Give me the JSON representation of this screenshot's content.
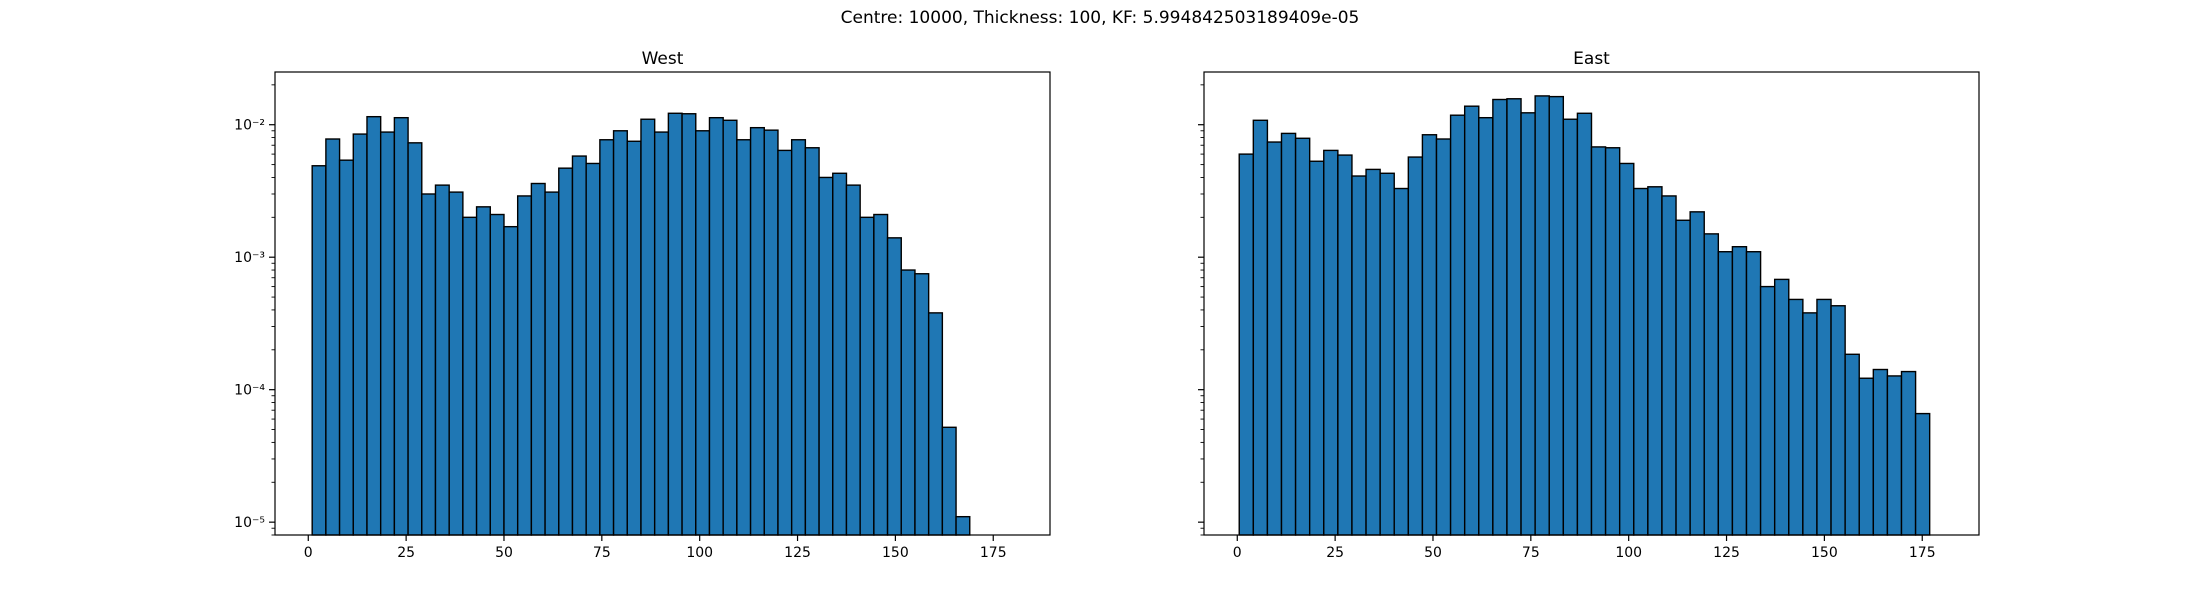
{
  "suptitle": "Centre: 10000, Thickness: 100, KF: 5.994842503189409e-05",
  "colors": {
    "bar_fill": "#1f77b4",
    "bar_edge": "#000000",
    "axes": "#000000"
  },
  "chart_data": [
    {
      "type": "bar",
      "title": "West",
      "xlabel": "",
      "ylabel": "",
      "yscale": "log",
      "xlim": [
        -8.5,
        189.5
      ],
      "ylim": [
        8e-06,
        0.025
      ],
      "grid": false,
      "xticks": [
        0,
        25,
        50,
        75,
        100,
        125,
        150,
        175
      ],
      "yticks": [
        1e-05,
        0.0001,
        0.001,
        0.01
      ],
      "ytick_labels": [
        "10⁻⁵",
        "10⁻⁴",
        "10⁻³",
        "10⁻²"
      ],
      "bin_edges_start": 1,
      "bin_width": 3.5,
      "values": [
        0.0049,
        0.0078,
        0.0054,
        0.0085,
        0.0115,
        0.0088,
        0.0113,
        0.0073,
        0.003,
        0.0035,
        0.0031,
        0.002,
        0.0024,
        0.0021,
        0.0017,
        0.0029,
        0.0036,
        0.0031,
        0.0047,
        0.0058,
        0.0051,
        0.0077,
        0.009,
        0.0075,
        0.011,
        0.0088,
        0.0122,
        0.0121,
        0.009,
        0.0113,
        0.0108,
        0.0077,
        0.0095,
        0.0091,
        0.0064,
        0.0077,
        0.0067,
        0.004,
        0.0043,
        0.0035,
        0.002,
        0.0021,
        0.0014,
        0.0008,
        0.00075,
        0.00038,
        5.2e-05,
        1.1e-05,
        0
      ]
    },
    {
      "type": "bar",
      "title": "East",
      "xlabel": "",
      "ylabel": "",
      "yscale": "log",
      "xlim": [
        -8.5,
        189.5
      ],
      "ylim": [
        8e-06,
        0.025
      ],
      "grid": false,
      "xticks": [
        0,
        25,
        50,
        75,
        100,
        125,
        150,
        175
      ],
      "yticks": [
        1e-05,
        0.0001,
        0.001,
        0.01
      ],
      "ytick_labels": [],
      "bin_edges_start": 0.5,
      "bin_width": 3.6,
      "values": [
        0.006,
        0.0108,
        0.0074,
        0.0086,
        0.0079,
        0.0053,
        0.0064,
        0.0059,
        0.0041,
        0.0046,
        0.0043,
        0.0033,
        0.0057,
        0.0084,
        0.0078,
        0.0118,
        0.0138,
        0.0113,
        0.0155,
        0.0157,
        0.0123,
        0.0165,
        0.0163,
        0.011,
        0.0122,
        0.0068,
        0.0067,
        0.0051,
        0.0033,
        0.0034,
        0.0029,
        0.0019,
        0.0022,
        0.0015,
        0.0011,
        0.0012,
        0.0011,
        0.0006,
        0.00068,
        0.00048,
        0.00038,
        0.00048,
        0.00043,
        0.000185,
        0.000122,
        0.000142,
        0.000127,
        0.000137,
        6.6e-05
      ]
    }
  ]
}
